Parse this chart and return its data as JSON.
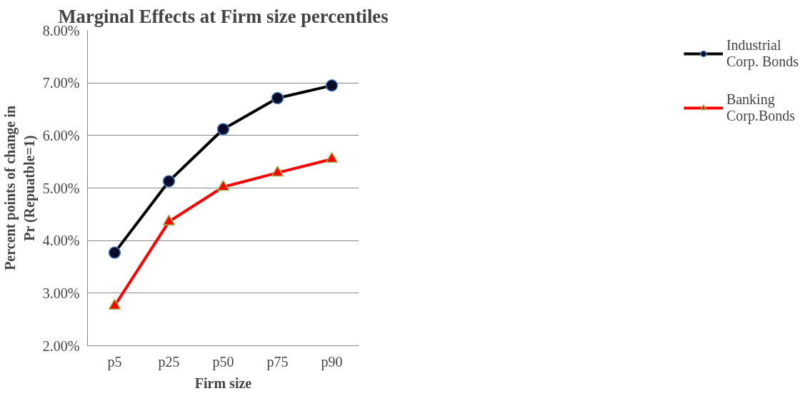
{
  "chart_data": {
    "type": "line",
    "title": "Marginal Effects at Firm size percentiles",
    "xlabel": "Firm size",
    "ylabel": "Percent points of change in Pr (Repuatble=1)",
    "categories": [
      "p5",
      "p25",
      "p50",
      "p75",
      "p90"
    ],
    "series": [
      {
        "name": "Industrial Corp. Bonds",
        "color": "#000000",
        "marker": "circle",
        "values": [
          3.77,
          5.13,
          6.12,
          6.71,
          6.95
        ]
      },
      {
        "name": "Banking Corp.Bonds",
        "color": "#ff0000",
        "marker": "triangle",
        "values": [
          2.76,
          4.36,
          5.02,
          5.29,
          5.55
        ]
      }
    ],
    "ylim": [
      2,
      8
    ],
    "yticks": [
      {
        "value": 2,
        "label": "2.00%"
      },
      {
        "value": 3,
        "label": "3.00%"
      },
      {
        "value": 4,
        "label": "4.00%"
      },
      {
        "value": 5,
        "label": "5.00%"
      },
      {
        "value": 6,
        "label": "6.00%"
      },
      {
        "value": 7,
        "label": "7.00%"
      },
      {
        "value": 8,
        "label": "8.00%"
      }
    ],
    "grid": "y",
    "legend": "right",
    "line_style": "solid"
  }
}
